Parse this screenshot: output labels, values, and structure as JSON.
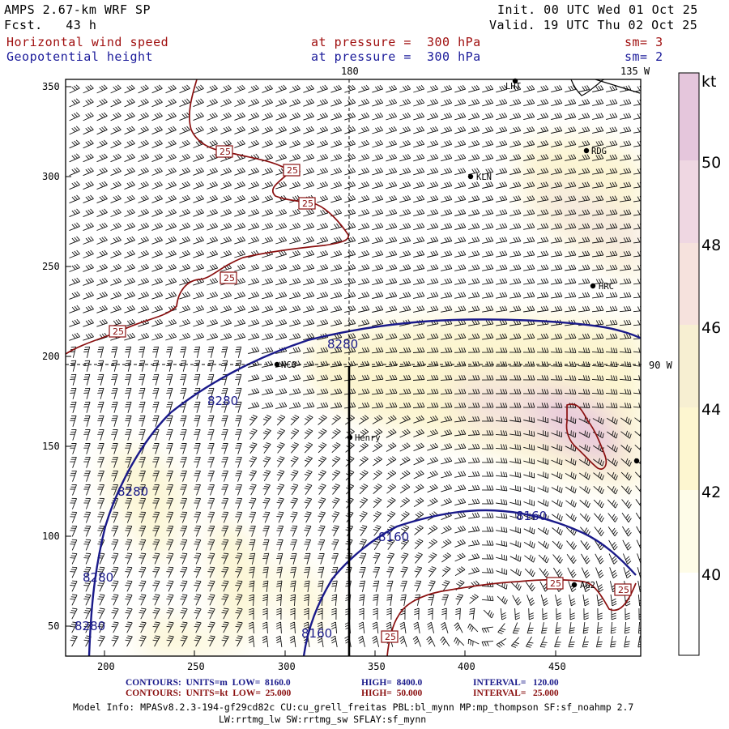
{
  "header": {
    "model": "AMPS 2.67-km WRF SP",
    "fcst": "Fcst.   43 h",
    "init": "Init. 00 UTC Wed 01 Oct 25",
    "valid": "Valid. 19 UTC Thu 02 Oct 25",
    "field1": "Horizontal wind speed",
    "field1_level": "at pressure =  300 hPa",
    "field1_sm": "sm= 3",
    "field2": "Geopotential height",
    "field2_level": "at pressure =  300 hPa",
    "field2_sm": "sm= 2"
  },
  "axes": {
    "x_ticks": [
      "200",
      "250",
      "300",
      "350",
      "400",
      "450"
    ],
    "y_ticks": [
      "350",
      "300",
      "250",
      "200",
      "150",
      "100",
      "50"
    ],
    "lon_top_1": "180",
    "lon_top_2": "135 W",
    "lon_right": "90 W"
  },
  "stations": [
    {
      "name": "LHT"
    },
    {
      "name": "RDG"
    },
    {
      "name": "KLN"
    },
    {
      "name": "HRC"
    },
    {
      "name": "NCO"
    },
    {
      "name": "Henry"
    },
    {
      "name": "AG2"
    }
  ],
  "contours": {
    "height_labels": [
      "8280",
      "8280",
      "8280",
      "8280",
      "8280",
      "8160",
      "8160",
      "8160"
    ],
    "speed_labels": [
      "25",
      "25",
      "25",
      "25",
      "25",
      "25",
      "25",
      "25"
    ]
  },
  "colorbar": {
    "unit": "kt",
    "labels": [
      "50",
      "48",
      "46",
      "44",
      "42",
      "40"
    ],
    "colors": [
      "#ffffff",
      "#fefce8",
      "#fdf6d0",
      "#f7efd2",
      "#f6e2dd",
      "#efd7e2",
      "#e5c6dc"
    ]
  },
  "footer": {
    "line1_a": "CONTOURS:  UNITS=m  LOW=  8160.0",
    "line1_b": "HIGH=  8400.0",
    "line1_c": "INTERVAL=   120.00",
    "line2_a": "CONTOURS:  UNITS=kt  LOW=  25.000",
    "line2_b": "HIGH=  50.000",
    "line2_c": "INTERVAL=   25.000",
    "model_info": "Model Info: MPASv8.2.3-194-gf29cd82c CU:cu_grell_freitas PBL:bl_mynn MP:mp_thompson SF:sf_noahmp 2.7",
    "model_info2": "LW:rrtmg_lw SW:rrtmg_sw SFLAY:sf_mynn"
  }
}
